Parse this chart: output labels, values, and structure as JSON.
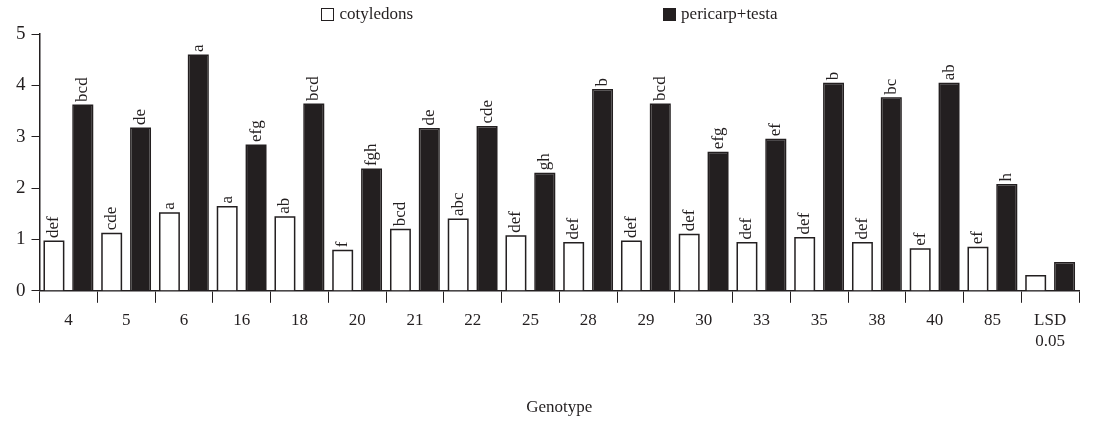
{
  "chart_data": {
    "type": "bar",
    "xlabel": "Genotype",
    "categories": [
      "4",
      "5",
      "6",
      "16",
      "18",
      "20",
      "21",
      "22",
      "25",
      "28",
      "29",
      "30",
      "33",
      "35",
      "38",
      "40",
      "85",
      "LSD 0.05"
    ],
    "ylim": [
      0,
      5
    ],
    "yticks": [
      0,
      1,
      2,
      3,
      4,
      5
    ],
    "grid": false,
    "legend": "top",
    "series": [
      {
        "name": "cotyledons",
        "color": "#ffffff",
        "values": [
          0.95,
          1.1,
          1.5,
          1.62,
          1.42,
          0.77,
          1.18,
          1.38,
          1.05,
          0.92,
          0.95,
          1.08,
          0.92,
          1.02,
          0.92,
          0.8,
          0.83,
          0.28
        ],
        "value_labels": [
          "def",
          "cde",
          "a",
          "a",
          "ab",
          "f",
          "bcd",
          "abc",
          "def",
          "def",
          "def",
          "def",
          "def",
          "def",
          "def",
          "ef",
          "ef",
          null
        ]
      },
      {
        "name": "pericarp+testa",
        "color": "#231f20",
        "values": [
          3.6,
          3.15,
          4.57,
          2.82,
          3.62,
          2.35,
          3.14,
          3.18,
          2.27,
          3.9,
          3.62,
          2.68,
          2.93,
          4.02,
          3.74,
          4.02,
          2.05,
          0.53
        ],
        "value_labels": [
          "bcd",
          "de",
          "a",
          "efg",
          "bcd",
          "fgh",
          "de",
          "cde",
          "gh",
          "b",
          "bcd",
          "efg",
          "ef",
          "b",
          "bc",
          "ab",
          "h",
          null
        ]
      }
    ]
  }
}
